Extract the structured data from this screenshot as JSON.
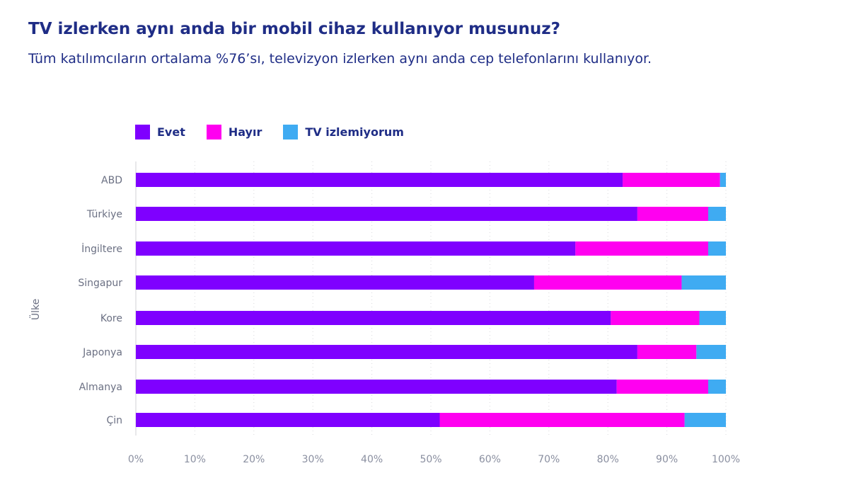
{
  "header": {
    "title": "TV izlerken aynı anda bir mobil cihaz kullanıyor musunuz?",
    "subtitle": "Tüm katılımcıların ortalama %76’sı, televizyon izlerken aynı anda cep telefonlarını kullanıyor."
  },
  "chart_data": {
    "type": "bar",
    "orientation": "horizontal",
    "stacked": true,
    "ylabel": "Ülke",
    "xlabel": "",
    "xlim": [
      0,
      100
    ],
    "x_ticks": [
      "0%",
      "10%",
      "20%",
      "30%",
      "40%",
      "50%",
      "60%",
      "70%",
      "80%",
      "90%",
      "100%"
    ],
    "grid": "vertical dotted",
    "legend_position": "top-left",
    "categories": [
      "ABD",
      "Türkiye",
      "İngiltere",
      "Singapur",
      "Kore",
      "Japonya",
      "Almanya",
      "Çin"
    ],
    "series": [
      {
        "name": "Evet",
        "color": "#7f00ff",
        "values": [
          82.5,
          85,
          74.5,
          67.5,
          80.5,
          85,
          81.5,
          51.5
        ]
      },
      {
        "name": "Hayır",
        "color": "#ff00f0",
        "values": [
          16.5,
          12,
          22.5,
          25,
          15,
          10,
          15.5,
          41.5
        ]
      },
      {
        "name": "TV izlemiyorum",
        "color": "#3fabf2",
        "values": [
          1,
          3,
          3,
          7.5,
          4.5,
          5,
          3,
          7
        ]
      }
    ]
  }
}
